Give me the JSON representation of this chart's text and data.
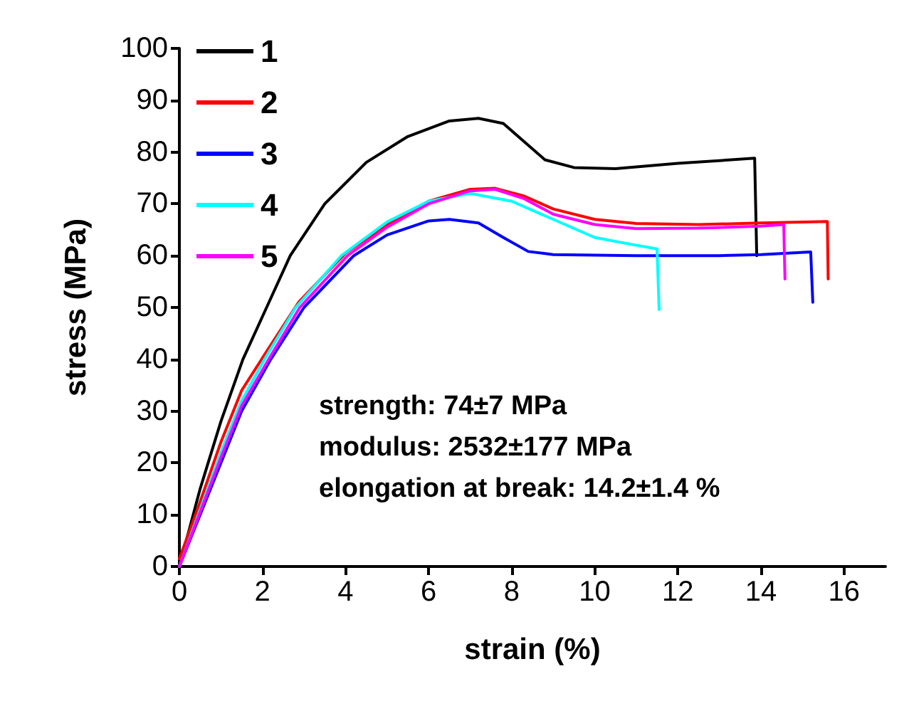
{
  "chart_data": {
    "type": "line",
    "xlabel": "strain (%)",
    "ylabel": "stress (MPa)",
    "xlim": [
      0,
      17
    ],
    "xticks": [
      0,
      2,
      4,
      6,
      8,
      10,
      12,
      14,
      16
    ],
    "ylim": [
      0,
      100
    ],
    "yticks": [
      0,
      10,
      20,
      30,
      40,
      50,
      60,
      70,
      80,
      90,
      100
    ],
    "grid": false,
    "legend": "top left",
    "marker": "none",
    "line_style": "solid",
    "annotations": [
      "strength: 74±7 MPa",
      "modulus: 2532±177 MPa",
      "elongation at break: 14.2±1.4 %"
    ],
    "series": [
      {
        "name": "1",
        "color": "#000000",
        "x": [
          0,
          0.5,
          1,
          1.53,
          2.1,
          2.67,
          3.5,
          4.5,
          5.5,
          6.5,
          7.2,
          7.8,
          8.3,
          8.8,
          9.5,
          10.5,
          12,
          13.85,
          13.9
        ],
        "values": [
          0,
          15,
          28,
          40,
          50,
          60,
          70,
          78,
          83,
          86,
          86.5,
          85.5,
          82,
          78.5,
          77,
          76.8,
          77.8,
          78.8,
          60
        ]
      },
      {
        "name": "2",
        "color": "#ff0000",
        "x": [
          0,
          0.5,
          1,
          1.5,
          2.1,
          2.87,
          4,
          5,
          6,
          7,
          7.6,
          8.3,
          9,
          10,
          11,
          12.5,
          14,
          15.6,
          15.62
        ],
        "values": [
          1.5,
          12.5,
          24,
          34,
          41.5,
          51,
          60.5,
          66,
          70.5,
          72.8,
          73,
          71.5,
          69,
          67,
          66.2,
          66,
          66.3,
          66.6,
          55.5
        ]
      },
      {
        "name": "3",
        "color": "#0000ff",
        "x": [
          0,
          0.5,
          1,
          1.5,
          2.2,
          3,
          4.2,
          5,
          6,
          6.5,
          7.2,
          7.8,
          8.4,
          9,
          11,
          13,
          14,
          15.2,
          15.25
        ],
        "values": [
          0,
          10,
          20,
          30,
          40,
          50,
          60,
          64,
          66.7,
          67,
          66.3,
          63.5,
          60.8,
          60.2,
          60,
          60,
          60.2,
          60.7,
          51
        ]
      },
      {
        "name": "4",
        "color": "#00ffff",
        "x": [
          0,
          0.5,
          1,
          1.5,
          2.05,
          2.8,
          3.9,
          5,
          6,
          7,
          8,
          9,
          10,
          11,
          11.5,
          11.55
        ],
        "values": [
          0,
          11,
          22,
          32,
          40,
          50,
          60,
          66.5,
          70.5,
          72,
          70.5,
          67,
          63.5,
          62,
          61.3,
          49.6
        ]
      },
      {
        "name": "5",
        "color": "#ff00ff",
        "x": [
          0,
          0.5,
          1,
          1.5,
          2.15,
          2.9,
          4.05,
          5,
          6,
          7,
          7.6,
          8.3,
          9,
          10,
          11,
          12.5,
          14,
          14.55,
          14.58
        ],
        "values": [
          0,
          10.5,
          21,
          31,
          40,
          50,
          60,
          65.5,
          70,
          72.5,
          72.8,
          71,
          68,
          66,
          65.2,
          65.3,
          65.7,
          66,
          55.5
        ]
      }
    ]
  }
}
